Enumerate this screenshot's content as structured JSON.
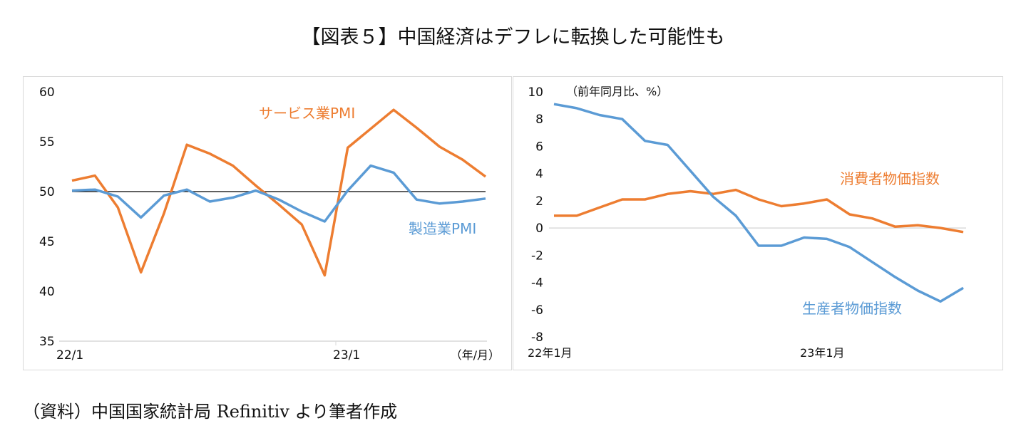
{
  "title": "【図表５】中国経済はデフレに転換した可能性も",
  "caption": "（資料）中国国家統計局 Refinitiv より筆者作成",
  "chart_data": [
    {
      "type": "line",
      "x": [
        "22/1",
        "22/2",
        "22/3",
        "22/4",
        "22/5",
        "22/6",
        "22/7",
        "22/8",
        "22/9",
        "22/10",
        "22/11",
        "22/12",
        "23/1",
        "23/2",
        "23/3",
        "23/4",
        "23/5",
        "23/6",
        "23/7"
      ],
      "xtick_labels": [
        "22/1",
        "23/1"
      ],
      "xlabel": "（年/月）",
      "ylim": [
        35,
        60
      ],
      "yticks": [
        35,
        40,
        45,
        50,
        55,
        60
      ],
      "reference_line": 50,
      "grid": false,
      "series": [
        {
          "name": "サービス業PMI",
          "color": "#ED7D31",
          "values": [
            51.1,
            51.6,
            48.4,
            41.9,
            47.8,
            54.7,
            53.8,
            52.6,
            50.6,
            48.7,
            46.7,
            41.6,
            54.4,
            56.3,
            58.2,
            56.4,
            54.5,
            53.2,
            51.5
          ]
        },
        {
          "name": "製造業PMI",
          "color": "#5B9BD5",
          "values": [
            50.1,
            50.2,
            49.5,
            47.4,
            49.6,
            50.2,
            49.0,
            49.4,
            50.1,
            49.2,
            48.0,
            47.0,
            50.1,
            52.6,
            51.9,
            49.2,
            48.8,
            49.0,
            49.3
          ]
        }
      ]
    },
    {
      "type": "line",
      "x": [
        "22/1",
        "22/2",
        "22/3",
        "22/4",
        "22/5",
        "22/6",
        "22/7",
        "22/8",
        "22/9",
        "22/10",
        "22/11",
        "22/12",
        "23/1",
        "23/2",
        "23/3",
        "23/4",
        "23/5",
        "23/6",
        "23/7"
      ],
      "xtick_labels": [
        "22年1月",
        "23年1月"
      ],
      "ylabel": "（前年同月比、%）",
      "ylim": [
        -8,
        10
      ],
      "yticks": [
        -8,
        -6,
        -4,
        -2,
        0,
        2,
        4,
        6,
        8,
        10
      ],
      "grid": false,
      "series": [
        {
          "name": "消費者物価指数",
          "color": "#ED7D31",
          "values": [
            0.9,
            0.9,
            1.5,
            2.1,
            2.1,
            2.5,
            2.7,
            2.5,
            2.8,
            2.1,
            1.6,
            1.8,
            2.1,
            1.0,
            0.7,
            0.1,
            0.2,
            0.0,
            -0.3
          ]
        },
        {
          "name": "生産者物価指数",
          "color": "#5B9BD5",
          "values": [
            9.1,
            8.8,
            8.3,
            8.0,
            6.4,
            6.1,
            4.2,
            2.3,
            0.9,
            -1.3,
            -1.3,
            -0.7,
            -0.8,
            -1.4,
            -2.5,
            -3.6,
            -4.6,
            -5.4,
            -4.4
          ]
        }
      ]
    }
  ]
}
